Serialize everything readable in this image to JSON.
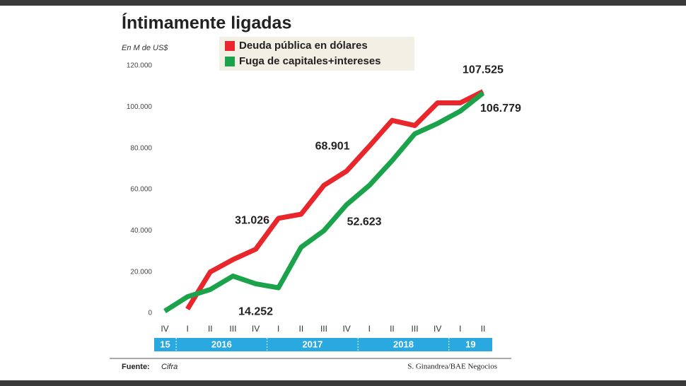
{
  "chart_data": {
    "type": "line",
    "title": "Íntimamente ligadas",
    "subtitle": "En M de US$",
    "categories": [
      "IV",
      "I",
      "II",
      "III",
      "IV",
      "I",
      "II",
      "III",
      "IV",
      "I",
      "II",
      "III",
      "IV",
      "I",
      "II"
    ],
    "years": [
      "15",
      "2016",
      "2017",
      "2018",
      "19"
    ],
    "series": [
      {
        "name": "Deuda pública en dólares",
        "color": "#e8262b",
        "values": [
          null,
          2000,
          20000,
          26000,
          31026,
          46000,
          48000,
          62000,
          68901,
          81000,
          93500,
          91000,
          102000,
          102000,
          107525
        ],
        "value_labels": [
          null,
          null,
          null,
          null,
          "31.026",
          null,
          null,
          null,
          "68.901",
          null,
          null,
          null,
          null,
          null,
          "107.525"
        ]
      },
      {
        "name": "Fuga de capitales+intereses",
        "color": "#1aa34a",
        "values": [
          1000,
          8000,
          11500,
          18000,
          14252,
          12300,
          32000,
          40000,
          52623,
          62000,
          74000,
          87000,
          92000,
          98000,
          106779
        ],
        "value_labels": [
          null,
          null,
          null,
          null,
          "14.252",
          null,
          null,
          null,
          "52.623",
          null,
          null,
          null,
          null,
          null,
          "106.779"
        ]
      }
    ],
    "ylim": [
      0,
      120000
    ],
    "yticks": [
      0,
      {
        "value": 20000,
        "label": "20.000"
      },
      {
        "value": 40000,
        "label": "40.000"
      },
      {
        "value": 60000,
        "label": "60.000"
      },
      {
        "value": 80000,
        "label": "80.000"
      },
      {
        "value": 100000,
        "label": "100.000"
      },
      {
        "value": 120000,
        "label": "120.000"
      }
    ],
    "grid": false,
    "source_label": "Fuente:",
    "source": "Cifra",
    "credit": "S. Ginandrea/BAE Negocios"
  }
}
